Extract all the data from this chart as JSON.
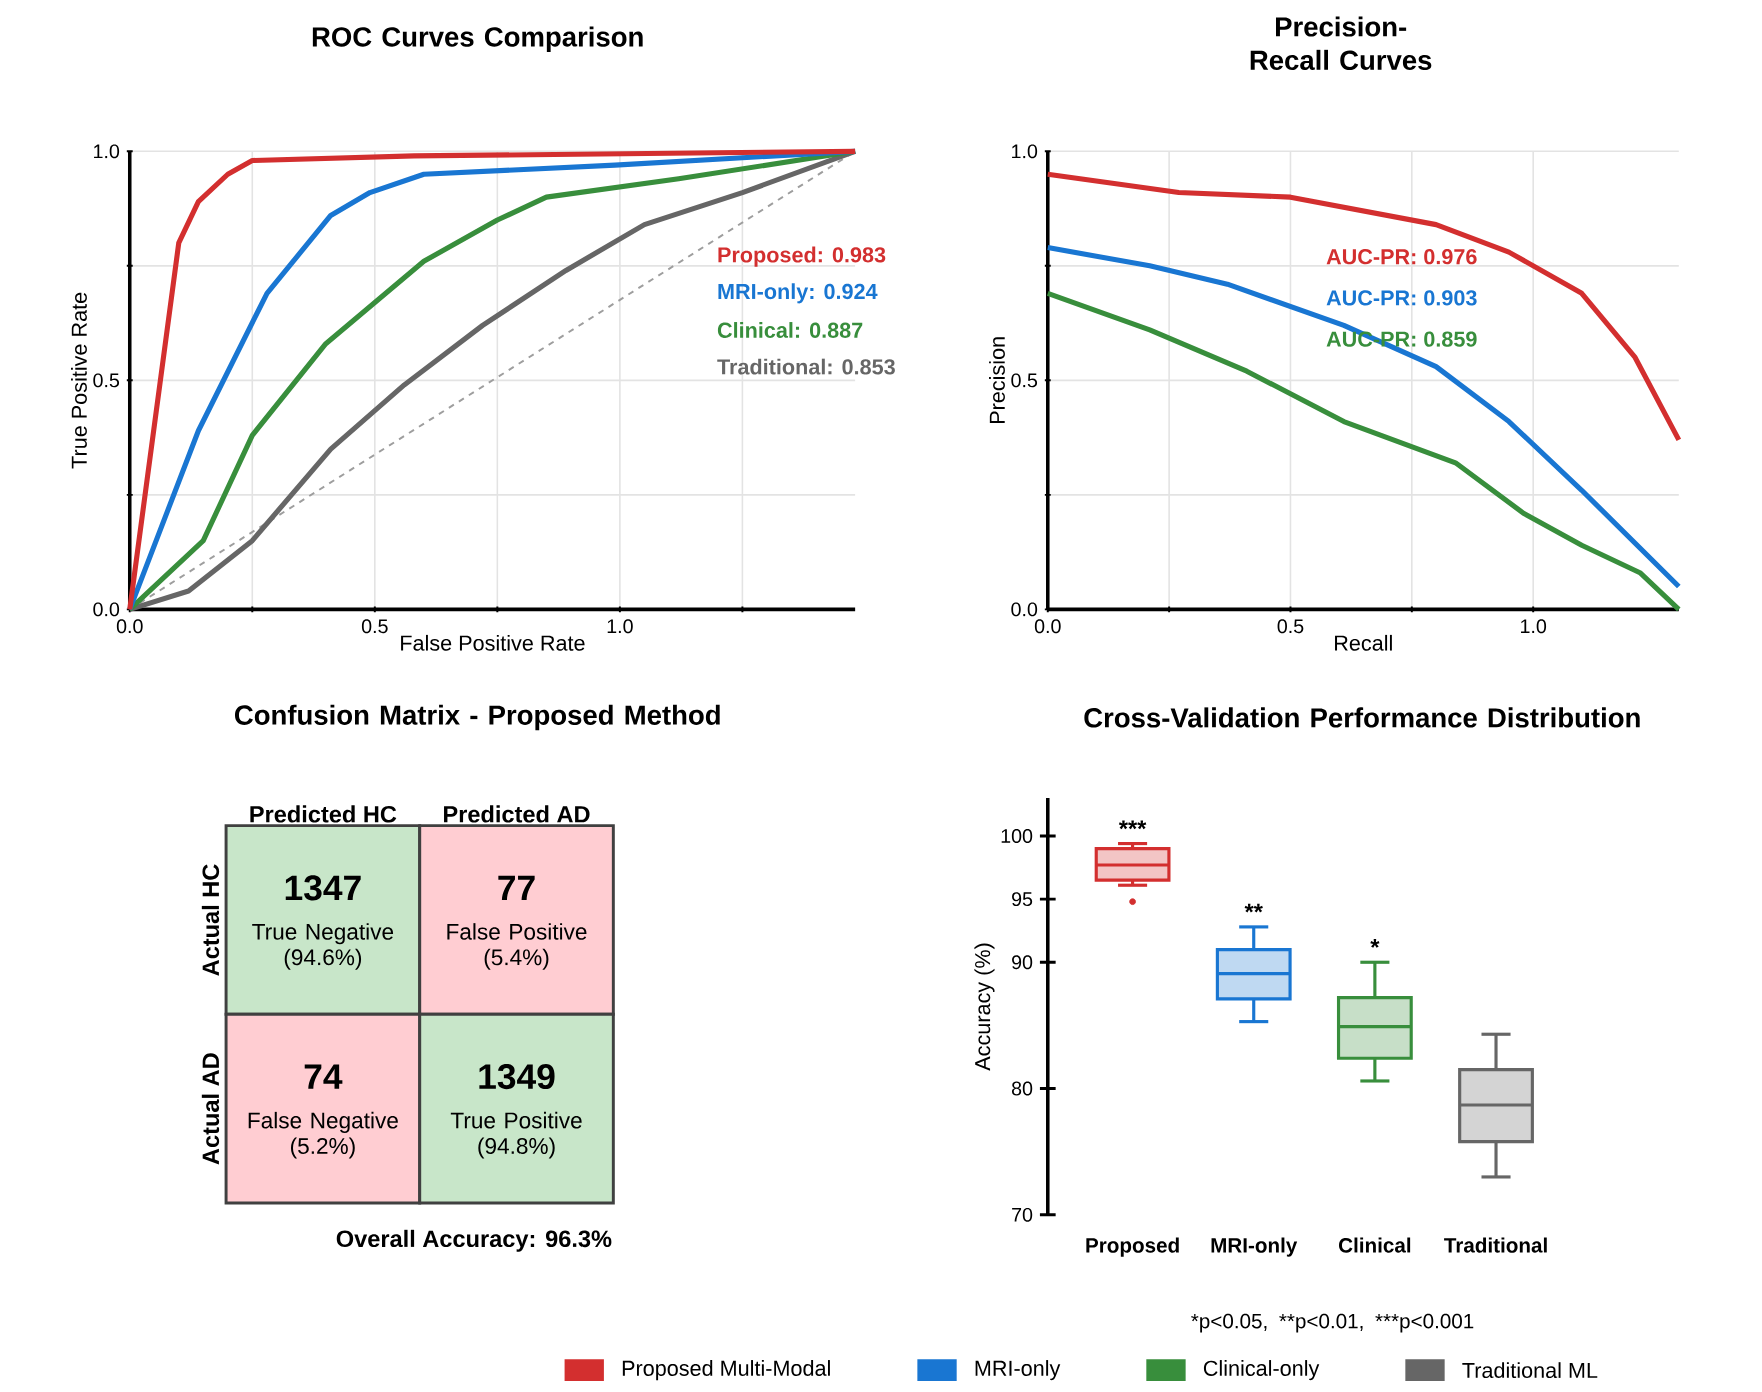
{
  "chart_data": [
    {
      "type": "line",
      "title": "ROC Curves Comparison",
      "xlabel": "False Positive Rate",
      "ylabel": "True Positive Rate",
      "xlim": [
        0,
        1.48
      ],
      "ylim": [
        0,
        1
      ],
      "xticks": [
        {
          "value": 0,
          "label": "0.0"
        },
        {
          "value": 0.25,
          "label": null
        },
        0.5,
        {
          "value": 0.75,
          "label": null
        },
        {
          "value": 1,
          "label": "1.0"
        },
        {
          "value": 1.25,
          "label": null
        }
      ],
      "yticks": [
        {
          "value": 0,
          "label": "0.0"
        },
        {
          "value": 0.25,
          "label": null
        },
        0.5,
        {
          "value": 0.75,
          "label": null
        },
        {
          "value": 1,
          "label": "1.0"
        }
      ],
      "grid": true,
      "legend": "bottom",
      "series": [
        {
          "name": "Proposed Multi-Modal",
          "color": "#d32f2f",
          "x": [
            0,
            0.1,
            0.14,
            0.2,
            0.25,
            0.58,
            1.48
          ],
          "values": [
            0,
            0.8,
            0.89,
            0.95,
            0.98,
            0.99,
            1.0
          ]
        },
        {
          "name": "MRI-only",
          "color": "#1976d2",
          "x": [
            0,
            0.14,
            0.28,
            0.41,
            0.49,
            0.6,
            0.99,
            1.48
          ],
          "values": [
            0,
            0.39,
            0.69,
            0.86,
            0.91,
            0.95,
            0.97,
            1.0
          ]
        },
        {
          "name": "Clinical-only",
          "color": "#388e3c",
          "x": [
            0,
            0.15,
            0.25,
            0.4,
            0.6,
            0.75,
            0.85,
            1.12,
            1.48
          ],
          "values": [
            0,
            0.15,
            0.38,
            0.58,
            0.76,
            0.85,
            0.9,
            0.94,
            1.0
          ]
        },
        {
          "name": "Traditional ML",
          "color": "#666666",
          "x": [
            0,
            0.12,
            0.25,
            0.41,
            0.56,
            0.72,
            0.89,
            1.05,
            1.25,
            1.48
          ],
          "values": [
            0,
            0.04,
            0.15,
            0.35,
            0.49,
            0.62,
            0.74,
            0.84,
            0.91,
            1.0
          ]
        },
        {
          "color": "#9e9e9e",
          "line_style": "dashed",
          "x": [
            0,
            1.48
          ],
          "values": [
            0,
            1
          ]
        }
      ],
      "annotations": [
        "Proposed: 0.983",
        "MRI-only: 0.924",
        "Clinical: 0.887",
        "Traditional: 0.853"
      ]
    },
    {
      "type": "line",
      "title": "Precision-Recall Curves",
      "xlabel": "Recall",
      "ylabel": "Precision",
      "xlim": [
        0,
        1.3
      ],
      "ylim": [
        0,
        1
      ],
      "xticks": [
        {
          "value": 0,
          "label": "0.0"
        },
        {
          "value": 0.25,
          "label": null
        },
        0.5,
        {
          "value": 0.75,
          "label": null
        },
        {
          "value": 1,
          "label": "1.0"
        }
      ],
      "yticks": [
        {
          "value": 0,
          "label": "0.0"
        },
        {
          "value": 0.25,
          "label": null
        },
        0.5,
        {
          "value": 0.75,
          "label": null
        },
        {
          "value": 1,
          "label": "1.0"
        }
      ],
      "grid": true,
      "series": [
        {
          "color": "#d32f2f",
          "x": [
            0,
            0.27,
            0.5,
            0.8,
            0.95,
            1.1,
            1.21,
            1.3
          ],
          "values": [
            0.95,
            0.91,
            0.9,
            0.84,
            0.78,
            0.69,
            0.55,
            0.37
          ]
        },
        {
          "color": "#1976d2",
          "x": [
            0,
            0.21,
            0.37,
            0.61,
            0.8,
            0.95,
            1.1,
            1.3
          ],
          "values": [
            0.79,
            0.75,
            0.71,
            0.62,
            0.53,
            0.41,
            0.26,
            0.05
          ]
        },
        {
          "color": "#388e3c",
          "x": [
            0,
            0.21,
            0.41,
            0.61,
            0.84,
            0.98,
            1.1,
            1.22,
            1.3
          ],
          "values": [
            0.69,
            0.61,
            0.52,
            0.41,
            0.32,
            0.21,
            0.14,
            0.08,
            0.0
          ]
        }
      ],
      "annotations": [
        "AUC-PR: 0.976",
        "AUC-PR: 0.903",
        "AUC-PR: 0.859"
      ]
    },
    {
      "type": "heatmap",
      "title": "Confusion Matrix - Proposed Method",
      "categories": [
        "Predicted HC",
        "Predicted AD"
      ],
      "y_categories": [
        "Actual HC",
        "Actual AD"
      ],
      "cells": [
        [
          1347,
          77
        ],
        [
          74,
          1349
        ]
      ],
      "colors": [
        [
          "#c8e6c9",
          "#ffcdd2"
        ],
        [
          "#ffcdd2",
          "#c8e6c9"
        ]
      ],
      "data_labels": true,
      "annotations": [
        "True Negative (94.6%)",
        "False Positive (5.4%)",
        "False Negative (5.2%)",
        "True Positive (94.8%)",
        "Overall Accuracy: 96.3%"
      ]
    },
    {
      "type": "box",
      "title": "Cross-Validation Performance Distribution",
      "ylabel": "Accuracy (%)",
      "categories": [
        "Proposed",
        "MRI-only",
        "Clinical",
        "Traditional"
      ],
      "colors": [
        "#d32f2f",
        "#1976d2",
        "#388e3c",
        "#666666"
      ],
      "boxes": [
        {
          "low": 96.1,
          "q1": 96.5,
          "median": 97.7,
          "q3": 99.0,
          "high": 99.4,
          "outliers": [
            94.8
          ]
        },
        {
          "low": 85.3,
          "q1": 87.1,
          "median": 89.1,
          "q3": 91.0,
          "high": 92.8
        },
        {
          "low": 80.6,
          "q1": 82.4,
          "median": 84.9,
          "q3": 87.2,
          "high": 90.0
        },
        {
          "low": 73.0,
          "q1": 75.8,
          "median": 78.7,
          "q3": 81.5,
          "high": 84.3
        }
      ],
      "ylim": [
        70,
        103
      ],
      "yticks": [
        100,
        95,
        90,
        80,
        70
      ],
      "annotations": [
        "*p<0.05,",
        "**p<0.01,",
        "***p<0.001",
        "***",
        "**",
        "*"
      ]
    }
  ]
}
